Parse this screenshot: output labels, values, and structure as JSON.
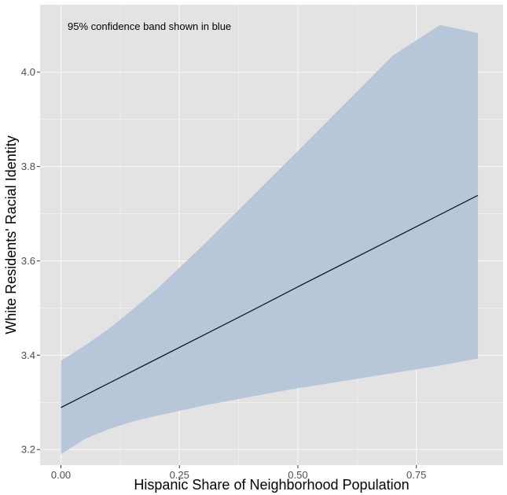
{
  "chart_data": {
    "type": "line",
    "title": "",
    "xlabel": "Hispanic Share of Neighborhood Population",
    "ylabel": "White Residents' Racial Identity",
    "xlim": [
      -0.044,
      0.933
    ],
    "ylim": [
      3.167,
      4.143
    ],
    "x_ticks": [
      0.0,
      0.25,
      0.5,
      0.75
    ],
    "x_tick_labels": [
      "0.00",
      "0.25",
      "0.50",
      "0.75"
    ],
    "y_ticks": [
      3.2,
      3.4,
      3.6,
      3.8,
      4.0
    ],
    "y_tick_labels": [
      "3.2",
      "3.4",
      "3.6",
      "3.8",
      "4.0"
    ],
    "grid": true,
    "annotation": "95% confidence band shown in blue",
    "series": [
      {
        "x": [
          0.0,
          0.1,
          0.2,
          0.3,
          0.4,
          0.5,
          0.6,
          0.7,
          0.8,
          0.88
        ],
        "y": [
          3.289,
          3.34,
          3.391,
          3.442,
          3.493,
          3.545,
          3.596,
          3.647,
          3.698,
          3.739
        ],
        "color": "#1a1a1a"
      }
    ],
    "band": {
      "x": [
        0.0,
        0.05,
        0.1,
        0.15,
        0.2,
        0.3,
        0.4,
        0.5,
        0.6,
        0.7,
        0.8,
        0.88
      ],
      "lower": [
        3.19,
        3.222,
        3.243,
        3.259,
        3.271,
        3.293,
        3.312,
        3.33,
        3.346,
        3.362,
        3.378,
        3.393
      ],
      "upper": [
        3.388,
        3.42,
        3.455,
        3.496,
        3.538,
        3.633,
        3.733,
        3.833,
        3.934,
        4.035,
        4.1,
        4.083
      ],
      "color": "#b3c3d7"
    },
    "colors": {
      "panel": "#e3e3e3",
      "grid": "#f5f5f5",
      "band": "#b3c3d7",
      "line": "#1a1a1a"
    }
  }
}
